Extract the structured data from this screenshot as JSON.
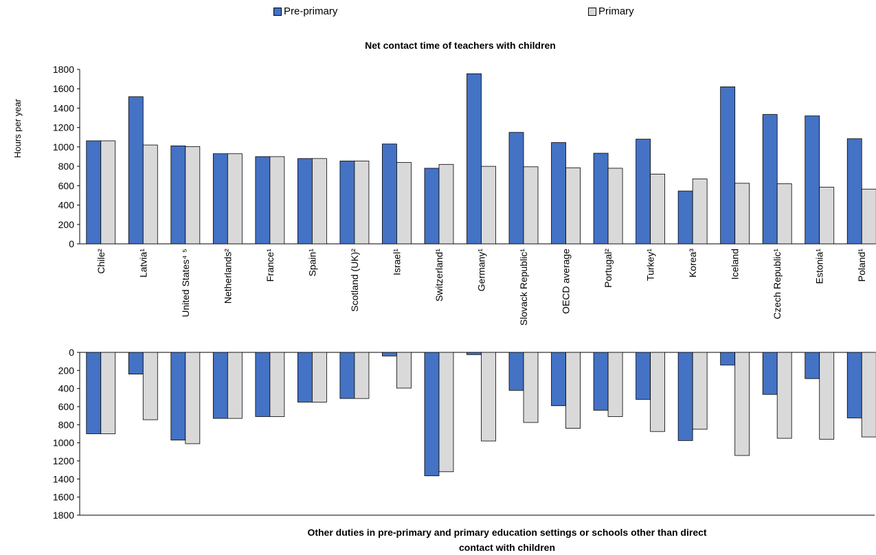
{
  "legend": {
    "pre_primary": "Pre-primary",
    "primary": "Primary"
  },
  "colors": {
    "pre_primary": "#4472C4",
    "primary": "#D9D9D9",
    "axis": "#000000"
  },
  "chart_data": [
    {
      "type": "bar",
      "title": "Net contact time of teachers with children",
      "ylabel": "Hours per year",
      "ylim": [
        0,
        1800
      ],
      "yticks": [
        0,
        200,
        400,
        600,
        800,
        1000,
        1200,
        1400,
        1600,
        1800
      ],
      "categories": [
        "Chile²",
        "Latvia¹",
        "United States⁴ ⁵",
        "Netherlands²",
        "France¹",
        "Spain¹",
        "Scotland (UK)²",
        "Israel¹",
        "Switzerland¹",
        "Germany¹",
        "Slovack Republic¹",
        "OECD average",
        "Portugal²",
        "Turkey¹",
        "Korea³",
        "Iceland",
        "Czech Republic¹",
        "Estonia¹",
        "Poland¹"
      ],
      "series": [
        {
          "name": "Pre-primary",
          "values": [
            1063,
            1518,
            1011,
            930,
            900,
            880,
            855,
            1030,
            780,
            1755,
            1150,
            1045,
            935,
            1080,
            545,
            1620,
            1335,
            1320,
            1085
          ]
        },
        {
          "name": "Primary",
          "values": [
            1063,
            1020,
            1004,
            930,
            900,
            880,
            855,
            840,
            820,
            800,
            795,
            785,
            780,
            720,
            670,
            625,
            620,
            585,
            565
          ]
        }
      ]
    },
    {
      "type": "bar",
      "title": "Other duties in pre-primary and primary education settings or schools other than direct contact with children",
      "ylim": [
        0,
        1800
      ],
      "yticks": [
        0,
        200,
        400,
        600,
        800,
        1000,
        1200,
        1400,
        1600,
        1800
      ],
      "y_inverted": true,
      "categories": [
        "Chile²",
        "Latvia¹",
        "United States⁴ ⁵",
        "Netherlands²",
        "France¹",
        "Spain¹",
        "Scotland (UK)²",
        "Israel¹",
        "Switzerland¹",
        "Germany¹",
        "Slovack Republic¹",
        "OECD average",
        "Portugal²",
        "Turkey¹",
        "Korea³",
        "Iceland",
        "Czech Republic¹",
        "Estonia¹",
        "Poland¹"
      ],
      "series": [
        {
          "name": "Pre-primary",
          "values": [
            900,
            240,
            970,
            730,
            710,
            550,
            510,
            40,
            1365,
            25,
            420,
            590,
            640,
            520,
            975,
            140,
            465,
            290,
            725
          ]
        },
        {
          "name": "Primary",
          "values": [
            900,
            745,
            1010,
            730,
            710,
            550,
            510,
            395,
            1320,
            980,
            775,
            840,
            710,
            875,
            850,
            1140,
            950,
            960,
            935
          ]
        }
      ]
    }
  ]
}
